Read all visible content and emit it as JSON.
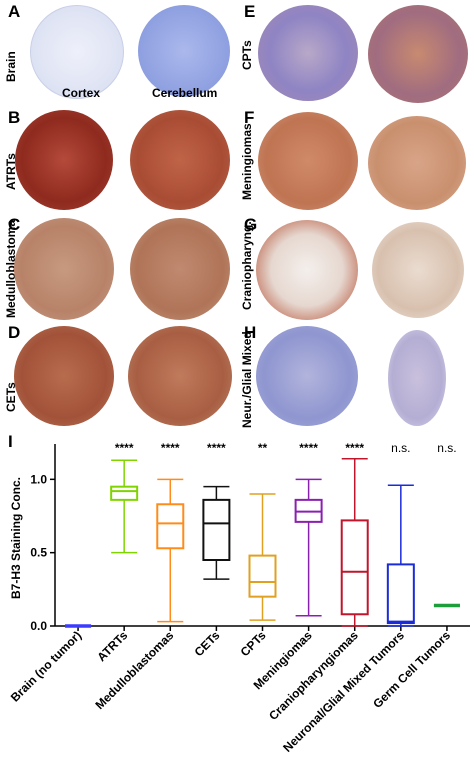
{
  "panels": {
    "A": {
      "letter": "A",
      "row_label": "Brain",
      "col_left": "Cortex",
      "col_right": "Cerebellum"
    },
    "B": {
      "letter": "B",
      "row_label": "ATRTs"
    },
    "C": {
      "letter": "C",
      "row_label": "Medulloblastoma"
    },
    "D": {
      "letter": "D",
      "row_label": "CETs"
    },
    "E": {
      "letter": "E",
      "row_label": "CPTs"
    },
    "F": {
      "letter": "F",
      "row_label": "Meningiomas"
    },
    "G": {
      "letter": "G",
      "row_label": "Craniopharyng."
    },
    "H": {
      "letter": "H",
      "row_label": "Neur./Glial Mixed"
    },
    "I": {
      "letter": "I"
    }
  },
  "chart_data": {
    "type": "box",
    "ylabel": "B7-H3 Staining Conc.",
    "ylim": [
      0,
      1.2
    ],
    "yticks": [
      "0.0",
      "0.5",
      "1.0"
    ],
    "categories": [
      "Brain (no tumor)",
      "ATRTs",
      "Medulloblastomas",
      "CETs",
      "CPTs",
      "Meningiomas",
      "Craniopharyngiomas",
      "Neuronal/Glial Mixed Tumors",
      "Germ Cell Tumors"
    ],
    "significance": [
      "",
      "****",
      "****",
      "****",
      "**",
      "****",
      "****",
      "n.s.",
      "n.s."
    ],
    "boxes": [
      {
        "min": 0.0,
        "q1": 0.0,
        "median": 0.0,
        "q3": 0.0,
        "max": 0.0,
        "color": "#3c3cff"
      },
      {
        "min": 0.5,
        "q1": 0.86,
        "median": 0.92,
        "q3": 0.95,
        "max": 1.13,
        "color": "#7fd400"
      },
      {
        "min": 0.03,
        "q1": 0.53,
        "median": 0.7,
        "q3": 0.83,
        "max": 1.0,
        "color": "#ff8c1a"
      },
      {
        "min": 0.32,
        "q1": 0.45,
        "median": 0.7,
        "q3": 0.86,
        "max": 0.95,
        "color": "#111111"
      },
      {
        "min": 0.04,
        "q1": 0.2,
        "median": 0.3,
        "q3": 0.48,
        "max": 0.9,
        "color": "#e0a020"
      },
      {
        "min": 0.07,
        "q1": 0.71,
        "median": 0.78,
        "q3": 0.86,
        "max": 1.0,
        "color": "#8a1fb0"
      },
      {
        "min": 0.0,
        "q1": 0.08,
        "median": 0.37,
        "q3": 0.72,
        "max": 1.14,
        "color": "#c0152a"
      },
      {
        "min": 0.0,
        "q1": 0.02,
        "median": 0.03,
        "q3": 0.42,
        "max": 0.96,
        "color": "#1a2bd8"
      },
      {
        "min": 0.14,
        "q1": 0.14,
        "median": 0.14,
        "q3": 0.14,
        "max": 0.14,
        "color": "#1e9e3a"
      }
    ]
  }
}
